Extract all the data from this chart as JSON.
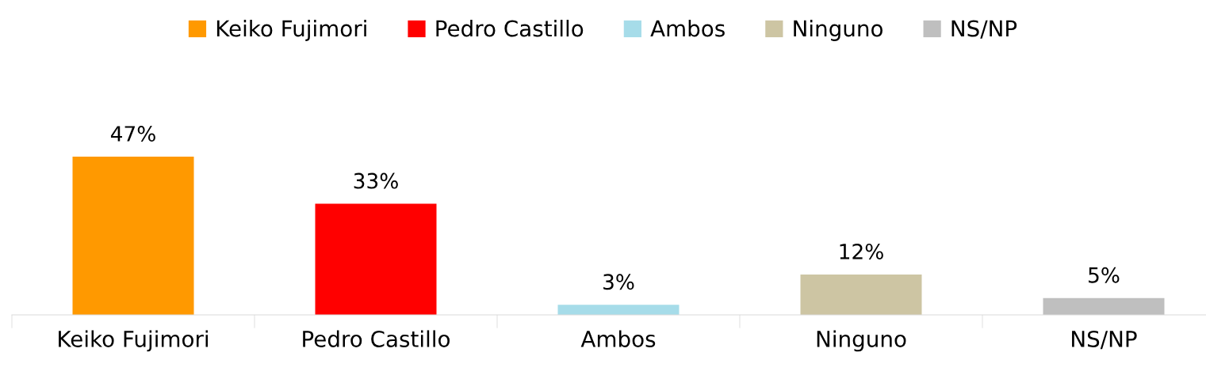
{
  "chart_data": {
    "type": "bar",
    "categories": [
      "Keiko Fujimori",
      "Pedro Castillo",
      "Ambos",
      "Ninguno",
      "NS/NP"
    ],
    "series": [
      {
        "name": "Keiko Fujimori",
        "color": "#ff9900",
        "values": [
          47,
          null,
          null,
          null,
          null
        ],
        "value_labels": [
          "47%",
          null,
          null,
          null,
          null
        ]
      },
      {
        "name": "Pedro Castillo",
        "color": "#ff0000",
        "values": [
          null,
          33,
          null,
          null,
          null
        ],
        "value_labels": [
          null,
          "33%",
          null,
          null,
          null
        ]
      },
      {
        "name": "Ambos",
        "color": "#a6dce9",
        "values": [
          null,
          null,
          3,
          null,
          null
        ],
        "value_labels": [
          null,
          null,
          "3%",
          null,
          null
        ]
      },
      {
        "name": "Ninguno",
        "color": "#cdc5a3",
        "values": [
          null,
          null,
          null,
          12,
          null
        ],
        "value_labels": [
          null,
          null,
          null,
          "12%",
          null
        ]
      },
      {
        "name": "NS/NP",
        "color": "#bfbfbf",
        "values": [
          null,
          null,
          null,
          null,
          5
        ],
        "value_labels": [
          null,
          null,
          null,
          null,
          "5%"
        ]
      }
    ],
    "legend": "top"
  }
}
